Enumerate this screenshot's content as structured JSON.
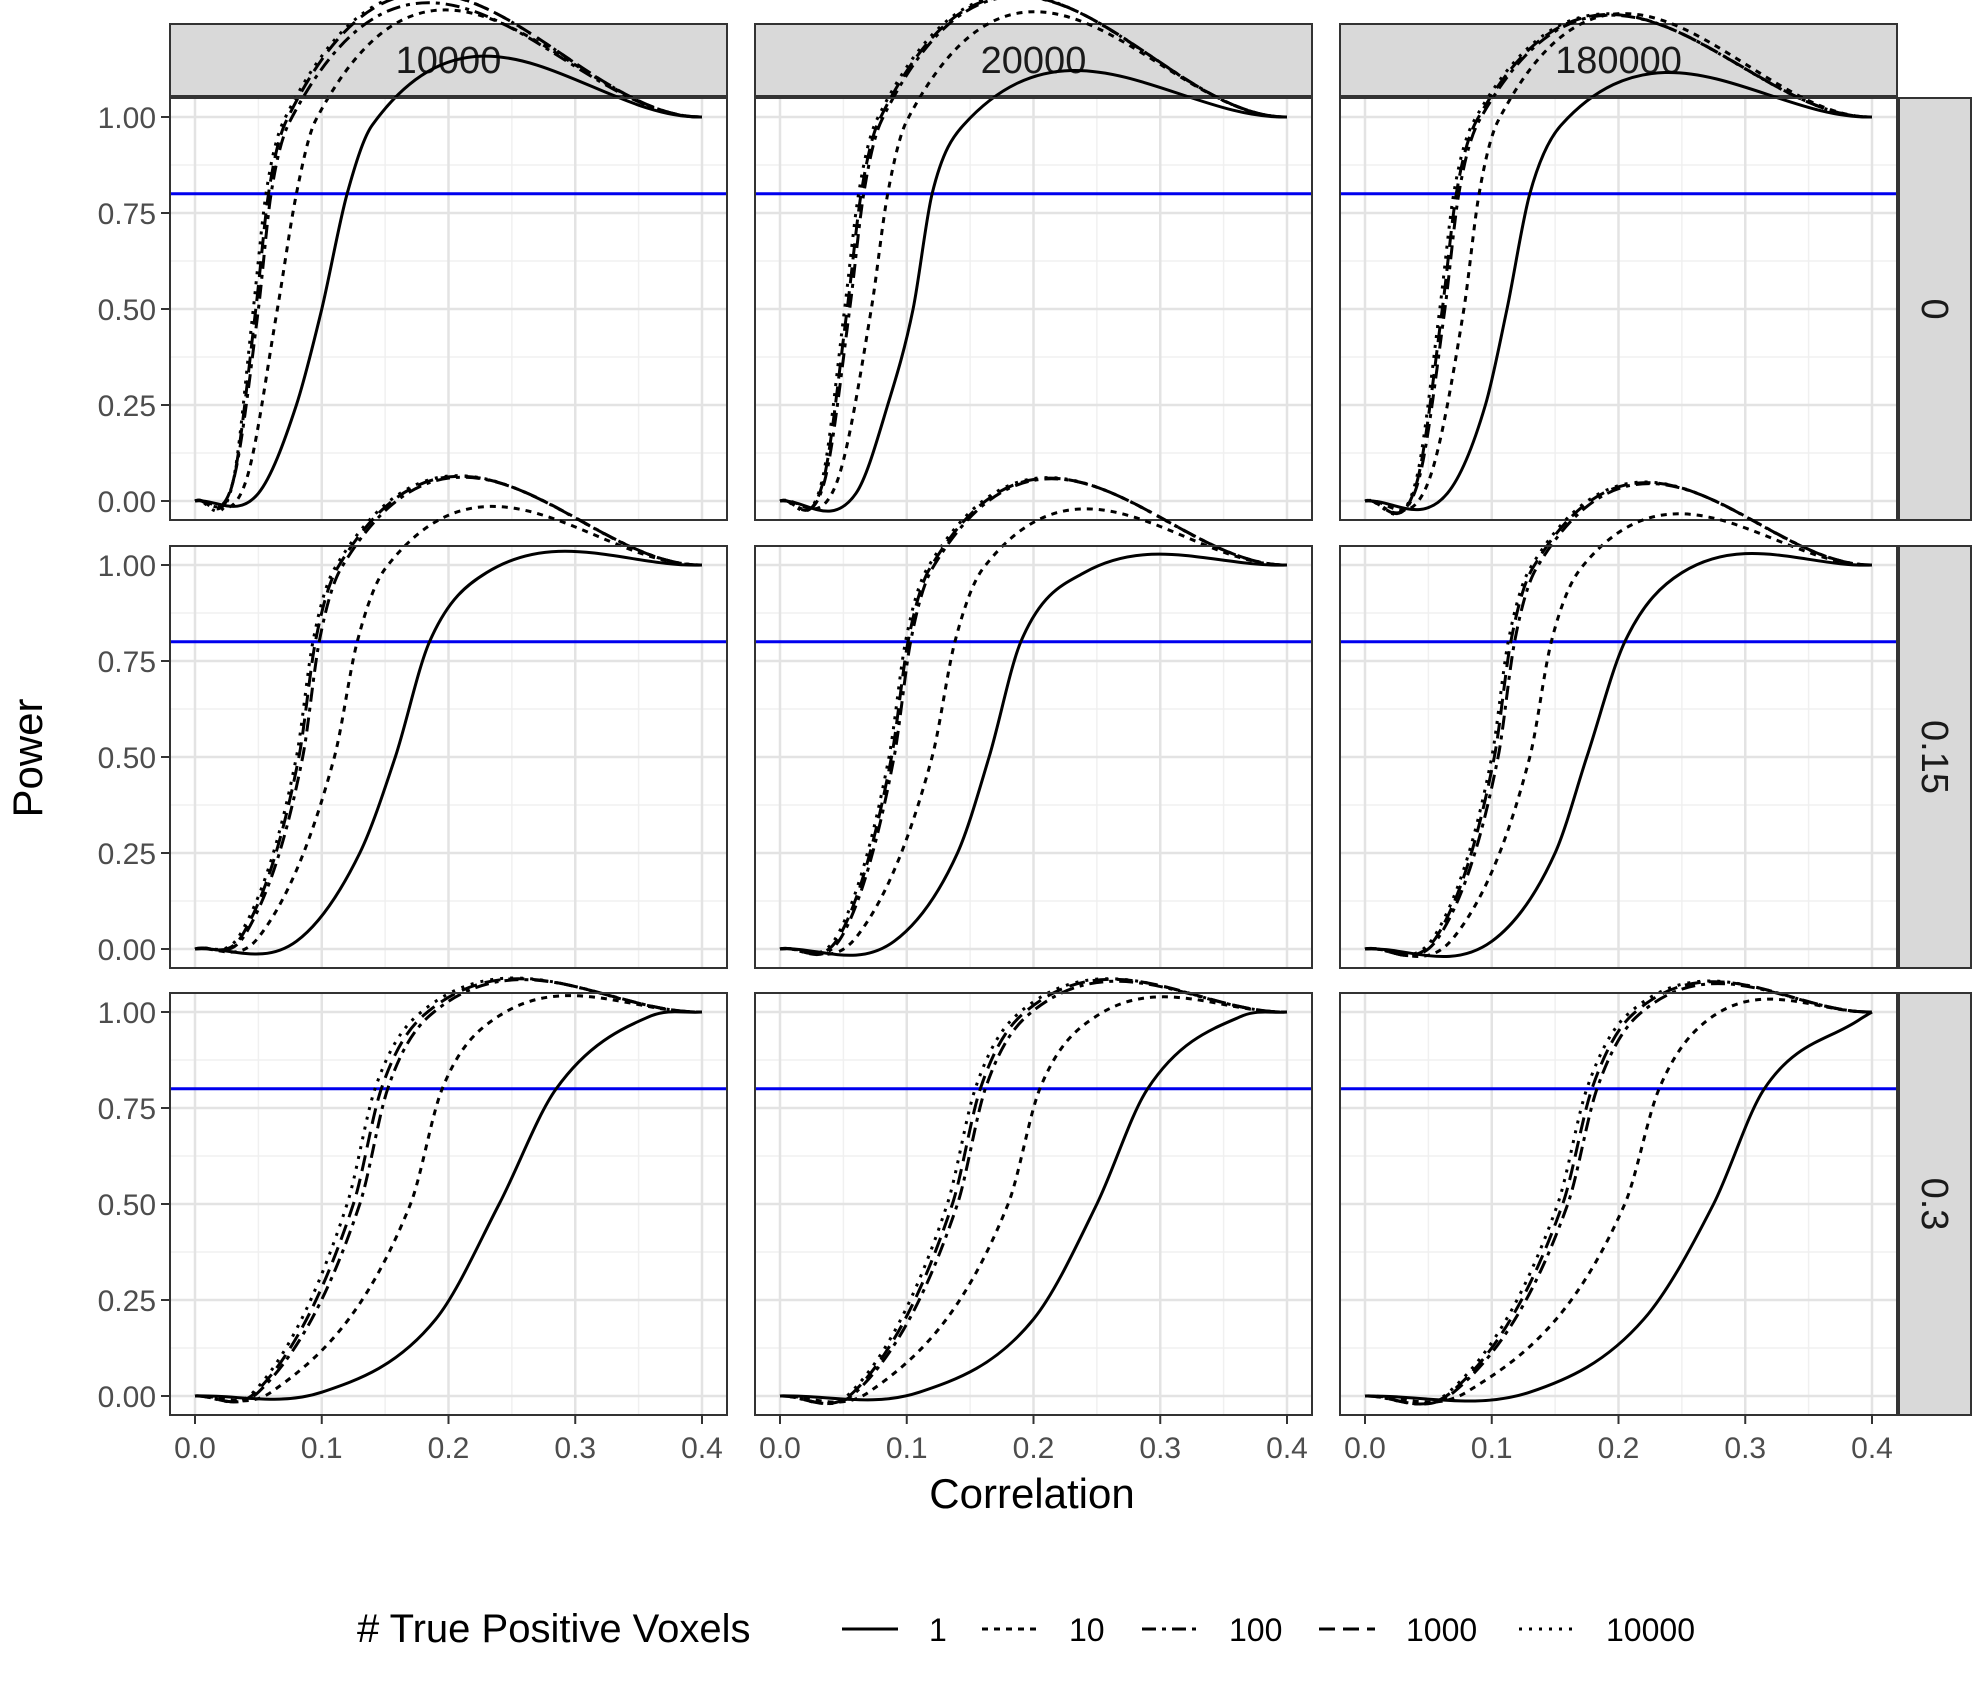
{
  "chart_data": {
    "type": "line",
    "facet_columns": [
      "10000",
      "20000",
      "180000"
    ],
    "facet_rows": [
      "0",
      "0.15",
      "0.3"
    ],
    "xlabel": "Correlation",
    "ylabel": "Power",
    "xlim": [
      0.0,
      0.4
    ],
    "ylim": [
      0.0,
      1.0
    ],
    "x_ticks": [
      "0.0",
      "0.1",
      "0.2",
      "0.3",
      "0.4"
    ],
    "y_ticks": [
      "0.00",
      "0.25",
      "0.50",
      "0.75",
      "1.00"
    ],
    "grid": true,
    "reference_line": {
      "y": 0.8,
      "color": "#0000ee"
    },
    "legend": {
      "title": "# True Positive Voxels",
      "position": "bottom",
      "entries": [
        {
          "label": "1",
          "linetype": "solid"
        },
        {
          "label": "10",
          "linetype": "dotted-dash"
        },
        {
          "label": "100",
          "linetype": "dashed"
        },
        {
          "label": "1000",
          "linetype": "longdash"
        },
        {
          "label": "10000",
          "linetype": "dotted"
        }
      ]
    },
    "panels": [
      {
        "col": "10000",
        "row": "0",
        "series": [
          {
            "name": "1",
            "x": [
              0.0,
              0.05,
              0.08,
              0.1,
              0.12,
              0.14,
              0.4
            ],
            "y": [
              0.0,
              0.02,
              0.25,
              0.5,
              0.8,
              0.98,
              1.0
            ]
          },
          {
            "name": "10",
            "x": [
              0.0,
              0.04,
              0.065,
              0.08,
              0.095,
              0.4
            ],
            "y": [
              0.0,
              0.05,
              0.5,
              0.8,
              0.99,
              1.0
            ]
          },
          {
            "name": "100",
            "x": [
              0.0,
              0.03,
              0.05,
              0.06,
              0.075,
              0.4
            ],
            "y": [
              0.0,
              0.05,
              0.5,
              0.8,
              0.99,
              1.0
            ]
          },
          {
            "name": "1000",
            "x": [
              0.0,
              0.03,
              0.048,
              0.058,
              0.072,
              0.4
            ],
            "y": [
              0.0,
              0.05,
              0.5,
              0.8,
              0.99,
              1.0
            ]
          },
          {
            "name": "10000",
            "x": [
              0.0,
              0.03,
              0.046,
              0.056,
              0.07,
              0.4
            ],
            "y": [
              0.0,
              0.05,
              0.5,
              0.8,
              0.99,
              1.0
            ]
          }
        ]
      },
      {
        "col": "20000",
        "row": "0",
        "series": [
          {
            "name": "1",
            "x": [
              0.0,
              0.06,
              0.085,
              0.105,
              0.12,
              0.145,
              0.4
            ],
            "y": [
              0.0,
              0.02,
              0.25,
              0.5,
              0.8,
              0.98,
              1.0
            ]
          },
          {
            "name": "10",
            "x": [
              0.0,
              0.045,
              0.072,
              0.085,
              0.1,
              0.4
            ],
            "y": [
              0.0,
              0.05,
              0.5,
              0.8,
              0.99,
              1.0
            ]
          },
          {
            "name": "100",
            "x": [
              0.0,
              0.035,
              0.055,
              0.066,
              0.08,
              0.4
            ],
            "y": [
              0.0,
              0.05,
              0.5,
              0.8,
              0.99,
              1.0
            ]
          },
          {
            "name": "1000",
            "x": [
              0.0,
              0.034,
              0.053,
              0.064,
              0.078,
              0.4
            ],
            "y": [
              0.0,
              0.05,
              0.5,
              0.8,
              0.99,
              1.0
            ]
          },
          {
            "name": "10000",
            "x": [
              0.0,
              0.033,
              0.051,
              0.062,
              0.076,
              0.4
            ],
            "y": [
              0.0,
              0.05,
              0.5,
              0.8,
              0.99,
              1.0
            ]
          }
        ]
      },
      {
        "col": "180000",
        "row": "0",
        "series": [
          {
            "name": "1",
            "x": [
              0.0,
              0.065,
              0.095,
              0.112,
              0.13,
              0.155,
              0.4
            ],
            "y": [
              0.0,
              0.02,
              0.25,
              0.5,
              0.8,
              0.98,
              1.0
            ]
          },
          {
            "name": "10",
            "x": [
              0.0,
              0.05,
              0.078,
              0.09,
              0.105,
              0.4
            ],
            "y": [
              0.0,
              0.05,
              0.5,
              0.8,
              0.99,
              1.0
            ]
          },
          {
            "name": "100",
            "x": [
              0.0,
              0.042,
              0.063,
              0.074,
              0.09,
              0.4
            ],
            "y": [
              0.0,
              0.05,
              0.5,
              0.8,
              0.99,
              1.0
            ]
          },
          {
            "name": "1000",
            "x": [
              0.0,
              0.041,
              0.061,
              0.072,
              0.088,
              0.4
            ],
            "y": [
              0.0,
              0.05,
              0.5,
              0.8,
              0.99,
              1.0
            ]
          },
          {
            "name": "10000",
            "x": [
              0.0,
              0.04,
              0.059,
              0.07,
              0.086,
              0.4
            ],
            "y": [
              0.0,
              0.05,
              0.5,
              0.8,
              0.99,
              1.0
            ]
          }
        ]
      },
      {
        "col": "10000",
        "row": "0.15",
        "series": [
          {
            "name": "1",
            "x": [
              0.0,
              0.08,
              0.13,
              0.158,
              0.185,
              0.23,
              0.4
            ],
            "y": [
              0.0,
              0.02,
              0.25,
              0.5,
              0.8,
              0.98,
              1.0
            ]
          },
          {
            "name": "10",
            "x": [
              0.0,
              0.05,
              0.11,
              0.128,
              0.15,
              0.4
            ],
            "y": [
              0.0,
              0.03,
              0.5,
              0.8,
              0.99,
              1.0
            ]
          },
          {
            "name": "100",
            "x": [
              0.0,
              0.04,
              0.085,
              0.098,
              0.115,
              0.4
            ],
            "y": [
              0.0,
              0.04,
              0.5,
              0.8,
              0.99,
              1.0
            ]
          },
          {
            "name": "1000",
            "x": [
              0.0,
              0.038,
              0.082,
              0.095,
              0.112,
              0.4
            ],
            "y": [
              0.0,
              0.04,
              0.5,
              0.8,
              0.99,
              1.0
            ]
          },
          {
            "name": "10000",
            "x": [
              0.0,
              0.036,
              0.08,
              0.093,
              0.11,
              0.4
            ],
            "y": [
              0.0,
              0.04,
              0.5,
              0.8,
              0.99,
              1.0
            ]
          }
        ]
      },
      {
        "col": "20000",
        "row": "0.15",
        "series": [
          {
            "name": "1",
            "x": [
              0.0,
              0.09,
              0.14,
              0.165,
              0.19,
              0.24,
              0.4
            ],
            "y": [
              0.0,
              0.02,
              0.25,
              0.5,
              0.8,
              0.98,
              1.0
            ]
          },
          {
            "name": "10",
            "x": [
              0.0,
              0.06,
              0.12,
              0.138,
              0.16,
              0.4
            ],
            "y": [
              0.0,
              0.03,
              0.5,
              0.8,
              0.99,
              1.0
            ]
          },
          {
            "name": "100",
            "x": [
              0.0,
              0.05,
              0.09,
              0.103,
              0.12,
              0.4
            ],
            "y": [
              0.0,
              0.04,
              0.5,
              0.8,
              0.99,
              1.0
            ]
          },
          {
            "name": "1000",
            "x": [
              0.0,
              0.048,
              0.088,
              0.101,
              0.118,
              0.4
            ],
            "y": [
              0.0,
              0.04,
              0.5,
              0.8,
              0.99,
              1.0
            ]
          },
          {
            "name": "10000",
            "x": [
              0.0,
              0.046,
              0.086,
              0.099,
              0.116,
              0.4
            ],
            "y": [
              0.0,
              0.04,
              0.5,
              0.8,
              0.99,
              1.0
            ]
          }
        ]
      },
      {
        "col": "180000",
        "row": "0.15",
        "series": [
          {
            "name": "1",
            "x": [
              0.0,
              0.1,
              0.15,
              0.175,
              0.205,
              0.25,
              0.4
            ],
            "y": [
              0.0,
              0.02,
              0.25,
              0.5,
              0.8,
              0.98,
              1.0
            ]
          },
          {
            "name": "10",
            "x": [
              0.0,
              0.07,
              0.13,
              0.147,
              0.17,
              0.4
            ],
            "y": [
              0.0,
              0.03,
              0.5,
              0.8,
              0.99,
              1.0
            ]
          },
          {
            "name": "100",
            "x": [
              0.0,
              0.06,
              0.105,
              0.118,
              0.135,
              0.4
            ],
            "y": [
              0.0,
              0.04,
              0.5,
              0.8,
              0.99,
              1.0
            ]
          },
          {
            "name": "1000",
            "x": [
              0.0,
              0.058,
              0.102,
              0.115,
              0.132,
              0.4
            ],
            "y": [
              0.0,
              0.04,
              0.5,
              0.8,
              0.99,
              1.0
            ]
          },
          {
            "name": "10000",
            "x": [
              0.0,
              0.056,
              0.1,
              0.113,
              0.13,
              0.4
            ],
            "y": [
              0.0,
              0.04,
              0.5,
              0.8,
              0.99,
              1.0
            ]
          }
        ]
      },
      {
        "col": "10000",
        "row": "0.3",
        "series": [
          {
            "name": "1",
            "x": [
              0.0,
              0.1,
              0.19,
              0.24,
              0.285,
              0.36,
              0.4
            ],
            "y": [
              0.0,
              0.01,
              0.2,
              0.5,
              0.8,
              0.99,
              1.0
            ]
          },
          {
            "name": "10",
            "x": [
              0.0,
              0.06,
              0.17,
              0.195,
              0.24,
              0.4
            ],
            "y": [
              0.0,
              0.01,
              0.5,
              0.8,
              0.99,
              1.0
            ]
          },
          {
            "name": "100",
            "x": [
              0.0,
              0.05,
              0.13,
              0.152,
              0.185,
              0.4
            ],
            "y": [
              0.0,
              0.01,
              0.5,
              0.8,
              0.99,
              1.0
            ]
          },
          {
            "name": "1000",
            "x": [
              0.0,
              0.048,
              0.125,
              0.147,
              0.18,
              0.4
            ],
            "y": [
              0.0,
              0.01,
              0.5,
              0.8,
              0.99,
              1.0
            ]
          },
          {
            "name": "10000",
            "x": [
              0.0,
              0.046,
              0.12,
              0.142,
              0.175,
              0.4
            ],
            "y": [
              0.0,
              0.01,
              0.5,
              0.8,
              0.99,
              1.0
            ]
          }
        ]
      },
      {
        "col": "20000",
        "row": "0.3",
        "series": [
          {
            "name": "1",
            "x": [
              0.0,
              0.11,
              0.2,
              0.25,
              0.29,
              0.365,
              0.4
            ],
            "y": [
              0.0,
              0.01,
              0.2,
              0.5,
              0.8,
              0.99,
              1.0
            ]
          },
          {
            "name": "10",
            "x": [
              0.0,
              0.07,
              0.18,
              0.205,
              0.25,
              0.4
            ],
            "y": [
              0.0,
              0.01,
              0.5,
              0.8,
              0.99,
              1.0
            ]
          },
          {
            "name": "100",
            "x": [
              0.0,
              0.06,
              0.14,
              0.162,
              0.195,
              0.4
            ],
            "y": [
              0.0,
              0.01,
              0.5,
              0.8,
              0.99,
              1.0
            ]
          },
          {
            "name": "1000",
            "x": [
              0.0,
              0.058,
              0.136,
              0.158,
              0.19,
              0.4
            ],
            "y": [
              0.0,
              0.01,
              0.5,
              0.8,
              0.99,
              1.0
            ]
          },
          {
            "name": "10000",
            "x": [
              0.0,
              0.056,
              0.132,
              0.154,
              0.186,
              0.4
            ],
            "y": [
              0.0,
              0.01,
              0.5,
              0.8,
              0.99,
              1.0
            ]
          }
        ]
      },
      {
        "col": "180000",
        "row": "0.3",
        "series": [
          {
            "name": "1",
            "x": [
              0.0,
              0.13,
              0.22,
              0.275,
              0.315,
              0.39,
              0.4
            ],
            "y": [
              0.0,
              0.01,
              0.2,
              0.5,
              0.8,
              0.98,
              1.0
            ]
          },
          {
            "name": "10",
            "x": [
              0.0,
              0.08,
              0.205,
              0.232,
              0.275,
              0.4
            ],
            "y": [
              0.0,
              0.01,
              0.5,
              0.8,
              0.99,
              1.0
            ]
          },
          {
            "name": "100",
            "x": [
              0.0,
              0.07,
              0.16,
              0.183,
              0.215,
              0.4
            ],
            "y": [
              0.0,
              0.01,
              0.5,
              0.8,
              0.99,
              1.0
            ]
          },
          {
            "name": "1000",
            "x": [
              0.0,
              0.068,
              0.156,
              0.179,
              0.21,
              0.4
            ],
            "y": [
              0.0,
              0.01,
              0.5,
              0.8,
              0.99,
              1.0
            ]
          },
          {
            "name": "10000",
            "x": [
              0.0,
              0.066,
              0.152,
              0.175,
              0.206,
              0.4
            ],
            "y": [
              0.0,
              0.01,
              0.5,
              0.8,
              0.99,
              1.0
            ]
          }
        ]
      }
    ]
  }
}
